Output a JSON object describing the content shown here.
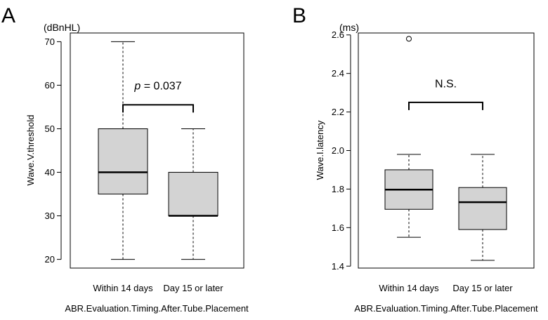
{
  "chart_data": [
    {
      "type": "box",
      "panel_label": "A",
      "unit": "(dBnHL)",
      "ylabel": "Wave.V.threshold",
      "xlabel": "ABR.Evaluation.Timing.After.Tube.Placement",
      "ylim": [
        18,
        72
      ],
      "yticks": [
        "20",
        "30",
        "40",
        "50",
        "60",
        "70"
      ],
      "ytick_values": [
        20,
        30,
        40,
        50,
        60,
        70
      ],
      "categories": [
        "Within 14 days",
        "Day 15 or later"
      ],
      "boxes": [
        {
          "whisker_low": 20,
          "q1": 35,
          "median": 40,
          "q3": 50,
          "whisker_high": 70,
          "outliers": []
        },
        {
          "whisker_low": 20,
          "q1": 30,
          "median": 30,
          "q3": 40,
          "whisker_high": 50,
          "outliers": []
        }
      ],
      "annotation": {
        "p_symbol": "p",
        "p_rest": " = 0.037",
        "bracket_y": 55.5,
        "label_y": 60
      },
      "colors": {
        "box_fill": "#d3d3d3"
      }
    },
    {
      "type": "box",
      "panel_label": "B",
      "unit": "(ms)",
      "ylabel": "Wave.I.latency",
      "xlabel": "ABR.Evaluation.Timing.After.Tube.Placement",
      "ylim": [
        1.39,
        2.61
      ],
      "yticks": [
        "1.4",
        "1.6",
        "1.8",
        "2.0",
        "2.2",
        "2.4",
        "2.6"
      ],
      "ytick_values": [
        1.4,
        1.6,
        1.8,
        2.0,
        2.2,
        2.4,
        2.6
      ],
      "categories": [
        "Within 14 days",
        "Day 15 or later"
      ],
      "boxes": [
        {
          "whisker_low": 1.55,
          "q1": 1.695,
          "median": 1.797,
          "q3": 1.9,
          "whisker_high": 1.98,
          "outliers": [
            2.58
          ]
        },
        {
          "whisker_low": 1.43,
          "q1": 1.59,
          "median": 1.732,
          "q3": 1.808,
          "whisker_high": 1.98,
          "outliers": []
        }
      ],
      "annotation": {
        "p_symbol": "",
        "p_rest": "N.S.",
        "bracket_y": 2.25,
        "label_y": 2.35
      },
      "colors": {
        "box_fill": "#d3d3d3"
      }
    }
  ]
}
